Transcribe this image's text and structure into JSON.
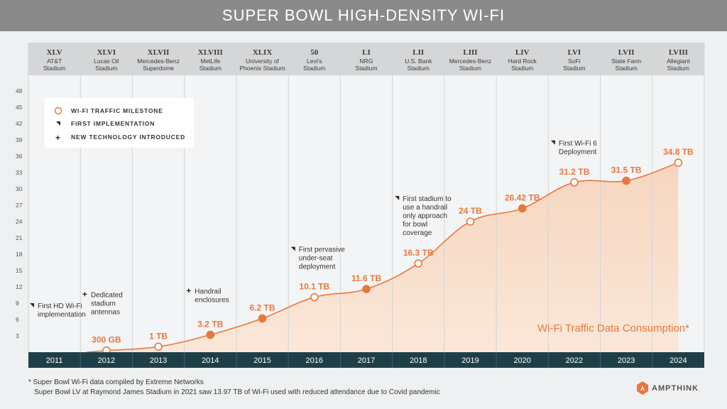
{
  "title": "SUPER BOWL HIGH-DENSITY WI-FI",
  "legend": {
    "milestone": "WI-FI TRAFFIC MILESTONE",
    "first": "FIRST IMPLEMENTATION",
    "tech": "NEW TECHNOLOGY INTRODUCED"
  },
  "footnotes": [
    "* Super Bowl Wi-Fi data compiled by Extreme Networks",
    "Super Bowl LV at Raymond James Stadium in 2021 saw 13.97 TB of Wi-Fi used with reduced attendance due to Covid pandemic"
  ],
  "brand": "AMPTHINK",
  "colors": {
    "accent": "#e9773c",
    "year_bar": "#1f3f48",
    "header_band": "#d4d6d8",
    "title_bar": "#8a8a8b"
  },
  "chart_data": {
    "type": "area",
    "series_name": "Wi-Fi Traffic Data Consumption*",
    "categories": [
      "2011",
      "2012",
      "2013",
      "2014",
      "2015",
      "2016",
      "2017",
      "2018",
      "2019",
      "2020",
      "2022",
      "2023",
      "2024"
    ],
    "super_bowls": [
      "XLV",
      "XLVI",
      "XLVII",
      "XLVIII",
      "XLIX",
      "50",
      "LI",
      "LII",
      "LIII",
      "LIV",
      "LVI",
      "LVII",
      "LVIII"
    ],
    "venues": [
      [
        "AT&T",
        "Stadium"
      ],
      [
        "Lucas Oil",
        "Stadium"
      ],
      [
        "Mercedes-Benz",
        "Superdome"
      ],
      [
        "MetLife",
        "Stadium"
      ],
      [
        "University of",
        "Phoenix Stadium"
      ],
      [
        "Levi's",
        "Stadium"
      ],
      [
        "NRG",
        "Stadium"
      ],
      [
        "U.S. Bank",
        "Stadium"
      ],
      [
        "Mercedes-Benz",
        "Stadium"
      ],
      [
        "Hard Rock",
        "Stadium"
      ],
      [
        "SoFi",
        "Stadium"
      ],
      [
        "State Farm",
        "Stadium"
      ],
      [
        "Allegiant",
        "Stadium"
      ]
    ],
    "values_tb": [
      null,
      0.3,
      1,
      3.2,
      6.2,
      10.1,
      11.6,
      16.3,
      24,
      26.42,
      31.2,
      31.5,
      34.8
    ],
    "value_labels": [
      "",
      "300 GB",
      "1 TB",
      "3.2 TB",
      "6.2 TB",
      "10.1 TB",
      "11.6 TB",
      "16.3 TB",
      "24 TB",
      "26.42 TB",
      "31.2 TB",
      "31.5 TB",
      "34.8 TB"
    ],
    "milestone": [
      false,
      true,
      true,
      false,
      false,
      true,
      false,
      true,
      true,
      false,
      true,
      false,
      true
    ],
    "yticks": [
      3,
      6,
      9,
      12,
      15,
      18,
      21,
      24,
      27,
      30,
      33,
      36,
      39,
      42,
      45,
      48
    ],
    "ylim": [
      0,
      48
    ],
    "annotations": [
      {
        "idx": 0,
        "marker": "first",
        "lines": [
          "First HD Wi-Fi",
          "implementation"
        ]
      },
      {
        "idx": 1,
        "marker": "tech",
        "lines": [
          "Dedicated",
          "stadium",
          "antennas"
        ]
      },
      {
        "idx": 3,
        "marker": "tech",
        "lines": [
          "Handrail",
          "enclosures"
        ]
      },
      {
        "idx": 5,
        "marker": "first",
        "lines": [
          "First pervasive",
          "under-seat",
          "deployment"
        ]
      },
      {
        "idx": 7,
        "marker": "first",
        "lines": [
          "First stadium to",
          "use a handrail",
          "only approach",
          "for bowl",
          "coverage"
        ]
      },
      {
        "idx": 10,
        "marker": "first",
        "lines": [
          "First Wi-Fi 6",
          "Deployment"
        ]
      }
    ]
  }
}
